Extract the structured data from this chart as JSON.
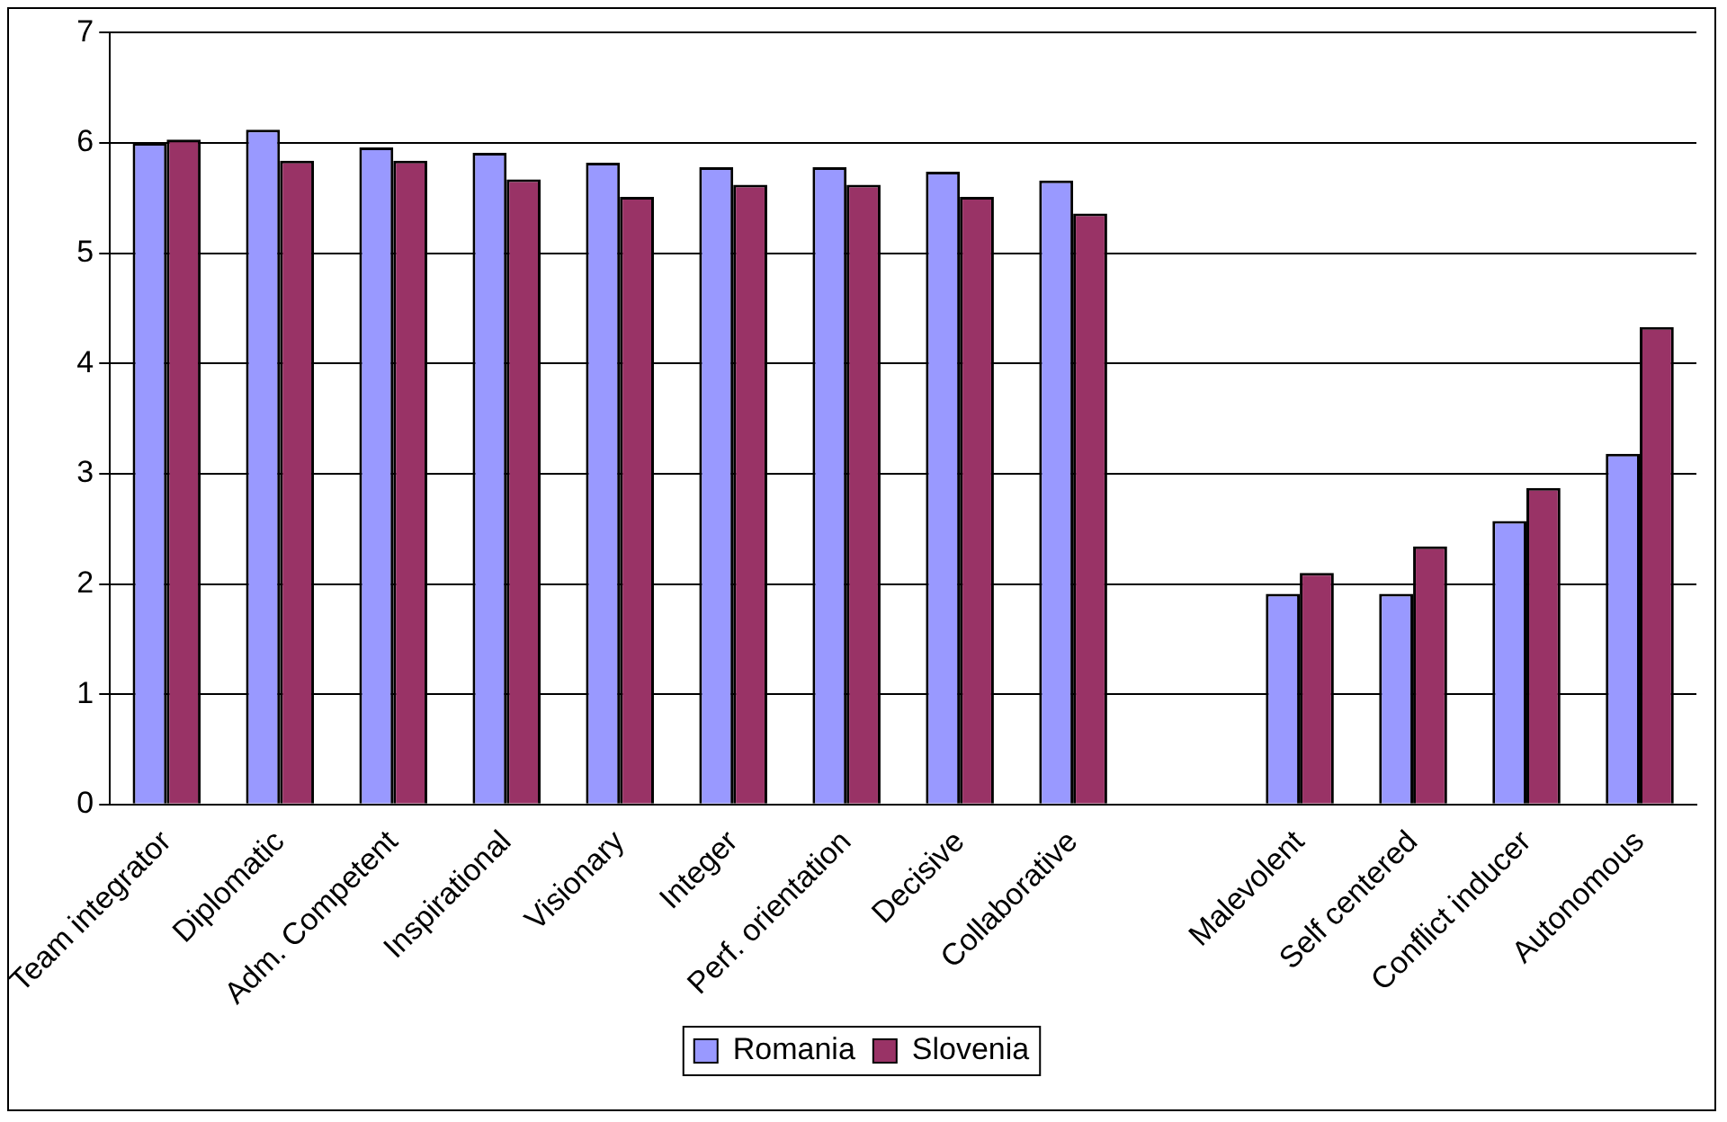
{
  "chart_data": {
    "type": "bar",
    "categories": [
      "Team integrator",
      "Diplomatic",
      "Adm. Competent",
      "Inspirational",
      "Visionary",
      "Integer",
      "Perf. orientation",
      "Decisive",
      "Collaborative",
      null,
      "Malevolent",
      "Self centered",
      "Conflict inducer",
      "Autonomous"
    ],
    "series": [
      {
        "name": "Romania",
        "color": "#9999ff",
        "values": [
          6.0,
          6.12,
          5.96,
          5.91,
          5.82,
          5.78,
          5.78,
          5.74,
          5.66,
          null,
          1.91,
          1.91,
          2.57,
          3.18
        ]
      },
      {
        "name": "Slovenia",
        "color": "#993366",
        "values": [
          6.03,
          5.84,
          5.84,
          5.67,
          5.51,
          5.62,
          5.62,
          5.51,
          5.36,
          null,
          2.1,
          2.34,
          2.87,
          4.33
        ]
      }
    ],
    "ylim": [
      0,
      7
    ],
    "yticks": [
      0,
      1,
      2,
      3,
      4,
      5,
      6,
      7
    ],
    "grid": "y",
    "legend": "bottom"
  }
}
